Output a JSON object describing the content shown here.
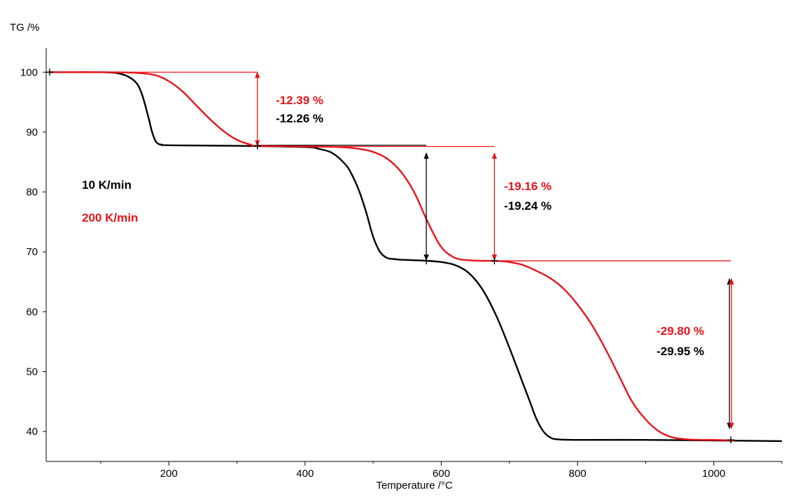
{
  "chart_data": {
    "type": "line",
    "title": "",
    "xlabel": "Temperature /°C",
    "ylabel": "TG /%",
    "xlim": [
      20,
      1100
    ],
    "ylim": [
      35,
      104
    ],
    "x_ticks": [
      200,
      400,
      600,
      800,
      1000
    ],
    "x_minor_ticks": [
      100,
      300,
      500,
      700,
      900,
      1100
    ],
    "y_ticks": [
      40,
      50,
      60,
      70,
      80,
      90,
      100
    ],
    "grid": false,
    "legend_position": "left",
    "colors": {
      "slow": "#000000",
      "fast": "#e8141b"
    },
    "series": [
      {
        "name": "10 K/min",
        "color": "#000000",
        "x": [
          25,
          100,
          130,
          150,
          160,
          170,
          175,
          180,
          185,
          190,
          200,
          300,
          400,
          420,
          440,
          460,
          470,
          480,
          490,
          500,
          510,
          520,
          530,
          540,
          560,
          580,
          600,
          620,
          640,
          660,
          680,
          700,
          720,
          730,
          740,
          750,
          760,
          770,
          800,
          900,
          1000,
          1100
        ],
        "y": [
          100,
          100,
          99.7,
          98.5,
          96.5,
          92.5,
          90.2,
          88.6,
          88,
          87.9,
          87.8,
          87.7,
          87.5,
          87.2,
          86.5,
          84.5,
          82.6,
          80,
          76.5,
          72.5,
          70,
          69,
          68.8,
          68.7,
          68.6,
          68.5,
          68.3,
          67.8,
          66.5,
          63.8,
          59.5,
          54,
          48,
          45,
          42,
          40,
          39,
          38.7,
          38.6,
          38.6,
          38.5,
          38.4
        ]
      },
      {
        "name": "200 K/min",
        "color": "#e8141b",
        "x": [
          25,
          100,
          150,
          180,
          200,
          220,
          240,
          260,
          280,
          300,
          320,
          330,
          400,
          450,
          480,
          500,
          520,
          540,
          560,
          580,
          600,
          620,
          640,
          660,
          680,
          700,
          720,
          740,
          760,
          780,
          800,
          820,
          840,
          860,
          880,
          900,
          920,
          940,
          960,
          980,
          1000,
          1030
        ],
        "y": [
          100,
          100,
          99.9,
          99.5,
          98.5,
          96.8,
          94.5,
          92.2,
          90.2,
          88.7,
          87.9,
          87.7,
          87.6,
          87.5,
          87.2,
          86.7,
          85.6,
          83.5,
          80,
          75,
          70.8,
          69,
          68.6,
          68.5,
          68.5,
          68.3,
          67.8,
          66.8,
          65.6,
          63.8,
          61.2,
          58,
          54,
          49.5,
          45,
          42,
          40,
          39,
          38.7,
          38.6,
          38.6,
          38.5
        ]
      }
    ],
    "legend": [
      {
        "label": "10 K/min",
        "color": "#000000"
      },
      {
        "label": "200 K/min",
        "color": "#e8141b"
      }
    ],
    "step_annotations": [
      {
        "label": "-12.39 %",
        "color": "#e8141b"
      },
      {
        "label": "-12.26 %",
        "color": "#000000"
      },
      {
        "label": "-19.16 %",
        "color": "#e8141b"
      },
      {
        "label": "-19.24 %",
        "color": "#000000"
      },
      {
        "label": "-29.80 %",
        "color": "#e8141b"
      },
      {
        "label": "-29.95 %",
        "color": "#000000"
      }
    ],
    "step_markers": [
      {
        "x": 25,
        "y": 100
      },
      {
        "x": 330,
        "y": 87.7
      },
      {
        "x": 578,
        "y": 68.5
      },
      {
        "x": 678,
        "y": 68.5
      },
      {
        "x": 1025,
        "y": 38.6
      }
    ],
    "baselines": [
      {
        "color": "#e8141b",
        "x": [
          100,
          330
        ],
        "y": 100
      },
      {
        "color": "#000000",
        "x": [
          330,
          578
        ],
        "y": 87.8
      },
      {
        "color": "#e8141b",
        "x": [
          330,
          678
        ],
        "y": 87.6
      },
      {
        "color": "#e8141b",
        "x": [
          678,
          1025
        ],
        "y": 68.5
      }
    ],
    "step_arrows": [
      {
        "color": "#e8141b",
        "x": 330,
        "y_top": 100,
        "y_bottom": 87.7
      },
      {
        "color": "#000000",
        "x": 578,
        "y_top": 86.5,
        "y_bottom": 68.6
      },
      {
        "color": "#e8141b",
        "x": 678,
        "y_top": 86.5,
        "y_bottom": 68.6
      },
      {
        "color": "#000000",
        "x": 1023,
        "y_top": 65.5,
        "y_bottom": 40.5
      },
      {
        "color": "#e8141b",
        "x": 1026,
        "y_top": 65.5,
        "y_bottom": 40.5
      }
    ]
  }
}
